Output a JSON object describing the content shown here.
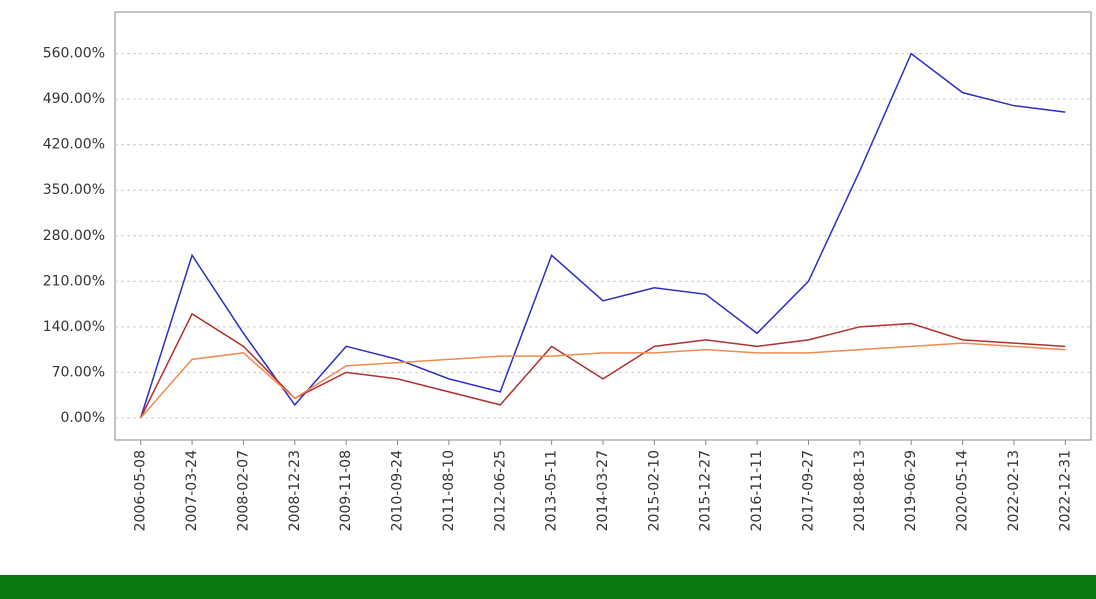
{
  "chart_data": {
    "type": "line",
    "categories": [
      "2006-05-08",
      "2007-03-24",
      "2008-02-07",
      "2008-12-23",
      "2009-11-08",
      "2010-09-24",
      "2011-08-10",
      "2012-06-25",
      "2013-05-11",
      "2014-03-27",
      "2015-02-10",
      "2015-12-27",
      "2016-11-11",
      "2017-09-27",
      "2018-08-13",
      "2019-06-29",
      "2020-05-14",
      "2022-02-13",
      "2022-12-31"
    ],
    "series": [
      {
        "color": "#2a2fc0",
        "values": [
          0,
          250,
          130,
          20,
          110,
          90,
          60,
          40,
          250,
          180,
          200,
          190,
          130,
          210,
          380,
          560,
          500,
          480,
          470
        ]
      },
      {
        "color": "#b03030",
        "values": [
          0,
          160,
          110,
          30,
          70,
          60,
          40,
          20,
          110,
          60,
          110,
          120,
          110,
          120,
          140,
          145,
          120,
          115,
          110
        ]
      },
      {
        "color": "#f08a50",
        "values": [
          0,
          90,
          100,
          30,
          80,
          85,
          90,
          95,
          95,
          100,
          100,
          105,
          100,
          100,
          105,
          110,
          115,
          110,
          105
        ]
      }
    ],
    "ylim": [
      -34,
      624
    ],
    "yticks": [
      {
        "value": 0,
        "label": "0.00%"
      },
      {
        "value": 70,
        "label": "70.00%"
      },
      {
        "value": 140,
        "label": "140.00%"
      },
      {
        "value": 210,
        "label": "210.00%"
      },
      {
        "value": 280,
        "label": "280.00%"
      },
      {
        "value": 350,
        "label": "350.00%"
      },
      {
        "value": 420,
        "label": "420.00%"
      },
      {
        "value": 490,
        "label": "490.00%"
      },
      {
        "value": 560,
        "label": "560.00%"
      }
    ],
    "grid": true
  }
}
